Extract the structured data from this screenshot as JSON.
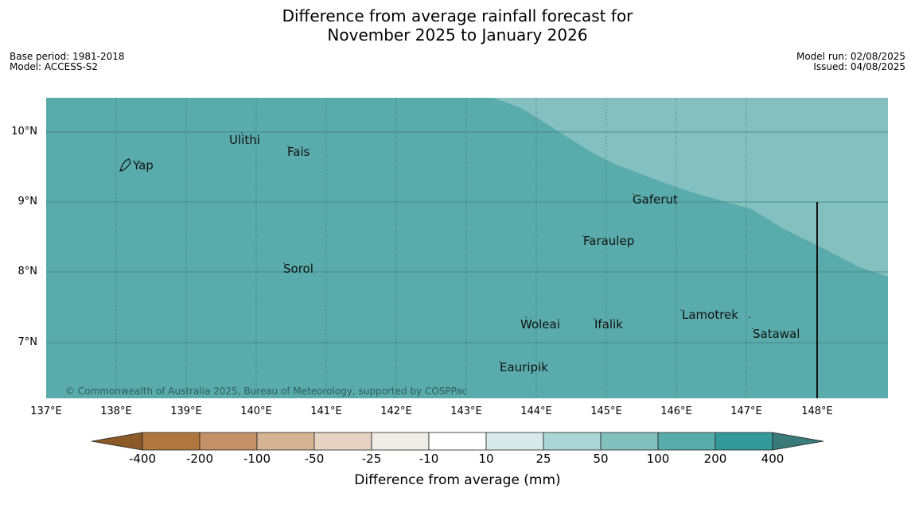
{
  "title": {
    "line1": "Difference from average rainfall forecast for",
    "line2": "November 2025 to January 2026"
  },
  "info_left": {
    "base_period": "Base period: 1981-2018",
    "model": "Model: ACCESS-S2"
  },
  "info_right": {
    "model_run": "Model run: 02/08/2025",
    "issued": "Issued: 04/08/2025"
  },
  "map": {
    "lon_ticks": [
      "137°E",
      "138°E",
      "139°E",
      "140°E",
      "141°E",
      "142°E",
      "143°E",
      "144°E",
      "145°E",
      "146°E",
      "147°E",
      "148°E"
    ],
    "lat_ticks": [
      "10°N",
      "9°N",
      "8°N",
      "7°N"
    ],
    "islands": [
      {
        "name": "Yap"
      },
      {
        "name": "Ulithi"
      },
      {
        "name": "Fais"
      },
      {
        "name": "Gaferut"
      },
      {
        "name": "Faraulep"
      },
      {
        "name": "Sorol"
      },
      {
        "name": "Woleai"
      },
      {
        "name": "Ifalik"
      },
      {
        "name": "Lamotrek"
      },
      {
        "name": "Satawal"
      },
      {
        "name": "Eauripik"
      }
    ],
    "copyright": "© Commonwealth of Australia 2025, Bureau of Meteorology, supported by COSPPac",
    "colors": {
      "main_fill": "#5aabab",
      "light_fill": "#84c0bf"
    }
  },
  "colorbar": {
    "title": "Difference from average (mm)",
    "ticks": [
      "-400",
      "-200",
      "-100",
      "-50",
      "-25",
      "-10",
      "10",
      "25",
      "50",
      "100",
      "200",
      "400"
    ],
    "colors": [
      "#8c5a28",
      "#b07640",
      "#c49168",
      "#d6b392",
      "#e6d3c3",
      "#f0ede8",
      "#ffffff",
      "#d6eae9",
      "#acd6d6",
      "#82c0be",
      "#5aabab",
      "#339999",
      "#3a7a78"
    ]
  }
}
